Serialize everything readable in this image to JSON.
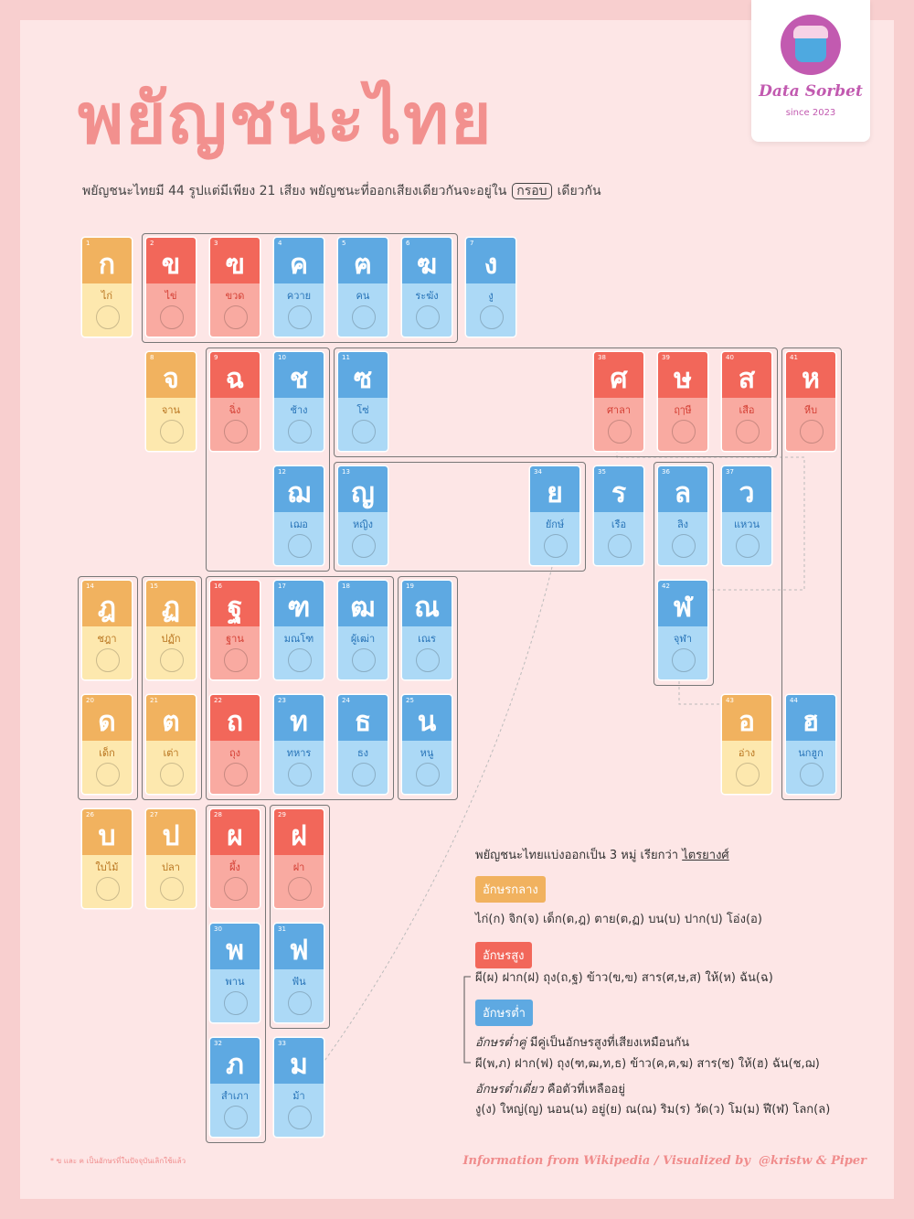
{
  "header": {
    "title": "พยัญชนะไทย",
    "subtitle_before": "พยัญชนะไทยมี 44 รูปแต่มีเพียง 21 เสียง พยัญชนะที่ออกเสียงเดียวกันจะอยู่ใน",
    "subtitle_boxed": "กรอบ",
    "subtitle_after": "เดียวกัน"
  },
  "logo": {
    "name": "Data Sorbet",
    "since": "since 2023"
  },
  "cards": [
    {
      "number": 1,
      "letter": "ก",
      "word": "ไก่"
    },
    {
      "number": 2,
      "letter": "ข",
      "word": "ไข่"
    },
    {
      "number": 3,
      "letter": "ฃ",
      "word": "ขวด"
    },
    {
      "number": 4,
      "letter": "ค",
      "word": "ควาย"
    },
    {
      "number": 5,
      "letter": "ฅ",
      "word": "คน"
    },
    {
      "number": 6,
      "letter": "ฆ",
      "word": "ระฆัง"
    },
    {
      "number": 7,
      "letter": "ง",
      "word": "งู"
    },
    {
      "number": 8,
      "letter": "จ",
      "word": "จาน"
    },
    {
      "number": 9,
      "letter": "ฉ",
      "word": "ฉิ่ง"
    },
    {
      "number": 10,
      "letter": "ช",
      "word": "ช้าง"
    },
    {
      "number": 11,
      "letter": "ซ",
      "word": "โซ่"
    },
    {
      "number": 12,
      "letter": "ฌ",
      "word": "เฌอ"
    },
    {
      "number": 13,
      "letter": "ญ",
      "word": "หญิง"
    },
    {
      "number": 14,
      "letter": "ฎ",
      "word": "ชฎา"
    },
    {
      "number": 15,
      "letter": "ฏ",
      "word": "ปฏัก"
    },
    {
      "number": 16,
      "letter": "ฐ",
      "word": "ฐาน"
    },
    {
      "number": 17,
      "letter": "ฑ",
      "word": "มณโฑ"
    },
    {
      "number": 18,
      "letter": "ฒ",
      "word": "ผู้เฒ่า"
    },
    {
      "number": 19,
      "letter": "ณ",
      "word": "เณร"
    },
    {
      "number": 20,
      "letter": "ด",
      "word": "เด็ก"
    },
    {
      "number": 21,
      "letter": "ต",
      "word": "เต่า"
    },
    {
      "number": 22,
      "letter": "ถ",
      "word": "ถุง"
    },
    {
      "number": 23,
      "letter": "ท",
      "word": "ทหาร"
    },
    {
      "number": 24,
      "letter": "ธ",
      "word": "ธง"
    },
    {
      "number": 25,
      "letter": "น",
      "word": "หนู"
    },
    {
      "number": 26,
      "letter": "บ",
      "word": "ใบไม้"
    },
    {
      "number": 27,
      "letter": "ป",
      "word": "ปลา"
    },
    {
      "number": 28,
      "letter": "ผ",
      "word": "ผึ้ง"
    },
    {
      "number": 29,
      "letter": "ฝ",
      "word": "ฝา"
    },
    {
      "number": 30,
      "letter": "พ",
      "word": "พาน"
    },
    {
      "number": 31,
      "letter": "ฟ",
      "word": "ฟัน"
    },
    {
      "number": 32,
      "letter": "ภ",
      "word": "สำเภา"
    },
    {
      "number": 33,
      "letter": "ม",
      "word": "ม้า"
    },
    {
      "number": 34,
      "letter": "ย",
      "word": "ยักษ์"
    },
    {
      "number": 35,
      "letter": "ร",
      "word": "เรือ"
    },
    {
      "number": 36,
      "letter": "ล",
      "word": "ลิง"
    },
    {
      "number": 37,
      "letter": "ว",
      "word": "แหวน"
    },
    {
      "number": 38,
      "letter": "ศ",
      "word": "ศาลา"
    },
    {
      "number": 39,
      "letter": "ษ",
      "word": "ฤๅษี"
    },
    {
      "number": 40,
      "letter": "ส",
      "word": "เสือ"
    },
    {
      "number": 41,
      "letter": "ห",
      "word": "หีบ"
    },
    {
      "number": 42,
      "letter": "ฬ",
      "word": "จุฬา"
    },
    {
      "number": 43,
      "letter": "อ",
      "word": "อ่าง"
    },
    {
      "number": 44,
      "letter": "ฮ",
      "word": "นกฮูก"
    }
  ],
  "legend": {
    "intro": "พยัญชนะไทยแบ่งออกเป็น 3 หมู่ เรียกว่า",
    "intro_term": "ไตรยางศ์",
    "mid_label": "อักษรกลาง",
    "mid_line": "ไก่(ก) จิก(จ) เด็ก(ด,ฎ) ตาย(ต,ฏ) บน(บ) ปาก(ป) โอ่ง(อ)",
    "high_label": "อักษรสูง",
    "high_line": "ผี(ผ) ฝาก(ฝ) ถุง(ถ,ฐ) ข้าว(ข,ฃ) สาร(ศ,ษ,ส) ให้(ห) ฉัน(ฉ)",
    "low_label": "อักษรต่ำ",
    "pair_term": "อักษรต่ำคู่",
    "pair_note": "มีคู่เป็นอักษรสูงที่เสียงเหมือนกัน",
    "pair_line": "ผี(พ,ภ) ฝาก(ฟ) ถุง(ฑ,ฒ,ท,ธ) ข้าว(ค,ฅ,ฆ) สาร(ซ) ให้(ฮ) ฉัน(ช,ฌ)",
    "single_term": "อักษรต่ำเดี่ยว",
    "single_note": "คือตัวที่เหลืออยู่",
    "single_line": "งู(ง) ใหญ่(ญ) นอน(น) อยู่(ย) ณ(ณ) ริม(ร) วัด(ว) โม(ม) ฬี(ฬ) โลก(ล)"
  },
  "footer": {
    "note": "* ฃ และ ฅ เป็นอักษรที่ในปัจจุบันเลิกใช้แล้ว",
    "credit": "Information from Wikipedia / Visualized by  @kristw & Piper"
  }
}
